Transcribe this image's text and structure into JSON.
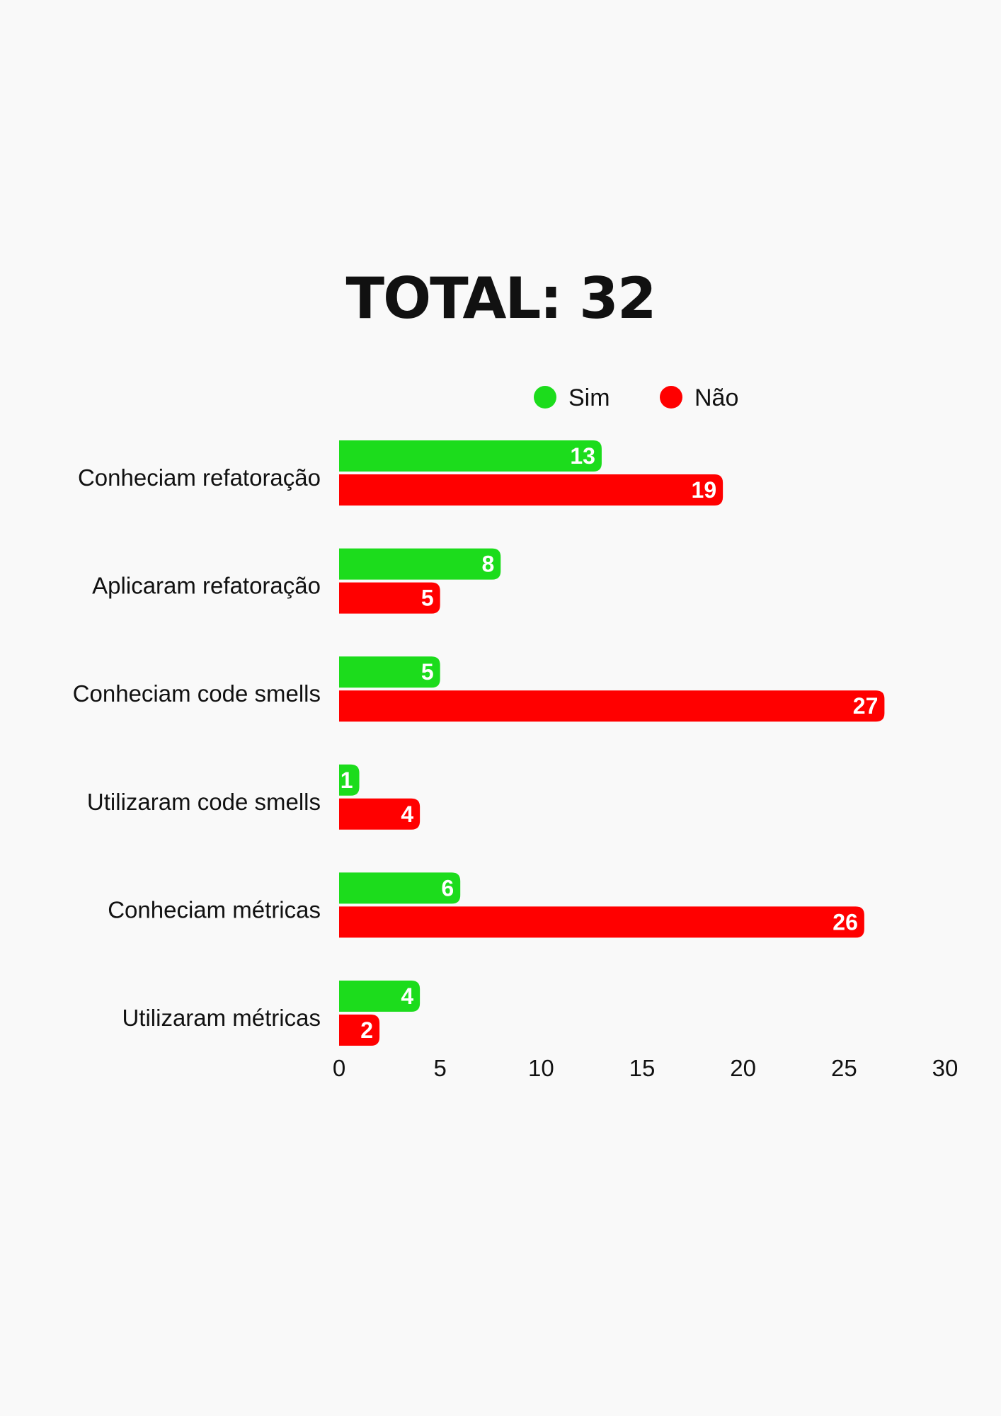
{
  "chart_data": {
    "type": "bar",
    "orientation": "horizontal",
    "title": "TOTAL: 32",
    "categories": [
      "Conheciam refatoração",
      "Aplicaram refatoração",
      "Conheciam code smells",
      "Utilizaram code smells",
      "Conheciam métricas",
      "Utilizaram métricas"
    ],
    "series": [
      {
        "name": "Sim",
        "color": "#1cdc1c",
        "values": [
          13,
          8,
          5,
          1,
          6,
          4
        ]
      },
      {
        "name": "Não",
        "color": "#ff0000",
        "values": [
          19,
          5,
          27,
          4,
          26,
          2
        ]
      }
    ],
    "xlim": [
      0,
      30
    ],
    "xticks": [
      0,
      5,
      10,
      15,
      20,
      25,
      30
    ],
    "legend_position": "top-right",
    "grid": false,
    "data_labels": true
  }
}
